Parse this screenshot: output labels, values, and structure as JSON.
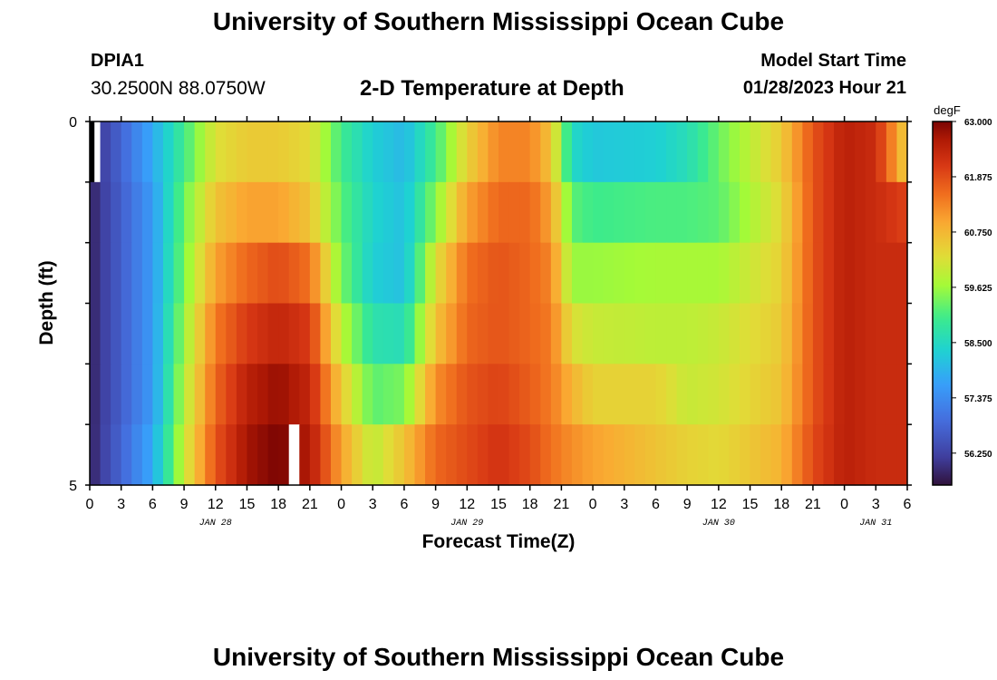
{
  "header": {
    "title": "University of Southern Mississippi Ocean Cube",
    "station": "DPIA1",
    "coords": "30.2500N  88.0750W",
    "subtitle": "2-D Temperature at Depth",
    "model_start_label": "Model Start Time",
    "model_start_value": "01/28/2023 Hour 21"
  },
  "footer": {
    "title": "University of Southern Mississippi Ocean Cube"
  },
  "chart_data": {
    "type": "heatmap",
    "title": "2-D Temperature at Depth",
    "xlabel": "Forecast Time(Z)",
    "ylabel": "Depth (ft)",
    "x_start": "01/28/2023 00Z",
    "x_step_hours": 1,
    "x_range_hours": [
      0,
      78
    ],
    "x_tick_labels": [
      "0",
      "3",
      "6",
      "9",
      "12",
      "15",
      "18",
      "21",
      "0",
      "3",
      "6",
      "9",
      "12",
      "15",
      "18",
      "21",
      "0",
      "3",
      "6",
      "9",
      "12",
      "15",
      "18",
      "21",
      "0",
      "3",
      "6"
    ],
    "x_tick_step_hours": 3,
    "date_labels": [
      {
        "label": "JAN 28",
        "hour": 12
      },
      {
        "label": "JAN 29",
        "hour": 36
      },
      {
        "label": "JAN 30",
        "hour": 60
      },
      {
        "label": "JAN 31",
        "hour": 75
      }
    ],
    "y_range": [
      0,
      5
    ],
    "y_tick_labels": [
      "0",
      "5"
    ],
    "depth_rows": [
      0,
      1,
      2,
      3,
      4,
      5
    ],
    "colorbar": {
      "unit": "degF",
      "min": 55.6,
      "max": 63.0,
      "tick_labels": [
        "63.000",
        "61.875",
        "60.750",
        "59.625",
        "58.500",
        "57.375",
        "56.250"
      ],
      "tick_values": [
        63.0,
        61.875,
        60.75,
        59.625,
        58.5,
        57.375,
        56.25
      ]
    },
    "missing_cells": [
      {
        "depth_index": 0,
        "hour": 0
      },
      {
        "depth_index": 5,
        "hour": 19
      }
    ],
    "keyframes": [
      {
        "hour": 0,
        "values": [
          55.8,
          55.8,
          55.8,
          55.8,
          55.8,
          55.8
        ]
      },
      {
        "hour": 6,
        "values": [
          57.8,
          57.6,
          57.6,
          57.6,
          57.6,
          57.8
        ]
      },
      {
        "hour": 9,
        "values": [
          59.0,
          59.3,
          59.4,
          59.6,
          59.8,
          60.0
        ]
      },
      {
        "hour": 12,
        "values": [
          60.2,
          60.6,
          61.0,
          61.4,
          61.6,
          61.8
        ]
      },
      {
        "hour": 15,
        "values": [
          60.5,
          61.0,
          61.6,
          62.1,
          62.5,
          62.7
        ]
      },
      {
        "hour": 18,
        "values": [
          60.5,
          61.0,
          61.9,
          62.4,
          62.8,
          63.0
        ]
      },
      {
        "hour": 21,
        "values": [
          60.3,
          60.6,
          61.5,
          62.1,
          62.4,
          62.6
        ]
      },
      {
        "hour": 24,
        "values": [
          59.0,
          59.2,
          59.4,
          59.9,
          60.5,
          61.0
        ]
      },
      {
        "hour": 27,
        "values": [
          58.3,
          58.4,
          58.3,
          58.7,
          59.2,
          59.9
        ]
      },
      {
        "hour": 30,
        "values": [
          58.0,
          58.1,
          58.1,
          58.6,
          59.4,
          60.6
        ]
      },
      {
        "hour": 33,
        "values": [
          59.0,
          59.5,
          60.2,
          60.6,
          61.2,
          61.6
        ]
      },
      {
        "hour": 36,
        "values": [
          60.4,
          61.0,
          61.5,
          61.6,
          61.8,
          61.9
        ]
      },
      {
        "hour": 39,
        "values": [
          61.3,
          61.6,
          61.8,
          61.8,
          62.0,
          62.2
        ]
      },
      {
        "hour": 42,
        "values": [
          61.3,
          61.6,
          61.6,
          61.6,
          61.7,
          61.9
        ]
      },
      {
        "hour": 44,
        "values": [
          60.6,
          61.0,
          61.3,
          61.4,
          61.4,
          61.5
        ]
      },
      {
        "hour": 46,
        "values": [
          58.5,
          59.2,
          59.6,
          60.2,
          60.8,
          61.2
        ]
      },
      {
        "hour": 48,
        "values": [
          58.2,
          59.0,
          59.6,
          60.0,
          60.4,
          61.0
        ]
      },
      {
        "hour": 54,
        "values": [
          58.3,
          59.1,
          59.7,
          59.9,
          60.4,
          60.6
        ]
      },
      {
        "hour": 57,
        "values": [
          58.6,
          59.1,
          59.7,
          59.9,
          60.0,
          60.4
        ]
      },
      {
        "hour": 60,
        "values": [
          59.3,
          59.2,
          59.7,
          60.0,
          60.1,
          60.3
        ]
      },
      {
        "hour": 66,
        "values": [
          60.5,
          60.3,
          60.4,
          60.5,
          60.6,
          60.8
        ]
      },
      {
        "hour": 69,
        "values": [
          61.8,
          61.8,
          61.8,
          61.8,
          61.8,
          61.9
        ]
      },
      {
        "hour": 72,
        "values": [
          62.5,
          62.5,
          62.5,
          62.5,
          62.5,
          62.5
        ]
      },
      {
        "hour": 75,
        "values": [
          62.3,
          62.3,
          62.3,
          62.3,
          62.3,
          62.3
        ]
      },
      {
        "hour": 78,
        "values": [
          60.4,
          62.0,
          62.3,
          62.3,
          62.3,
          62.3
        ]
      }
    ]
  }
}
